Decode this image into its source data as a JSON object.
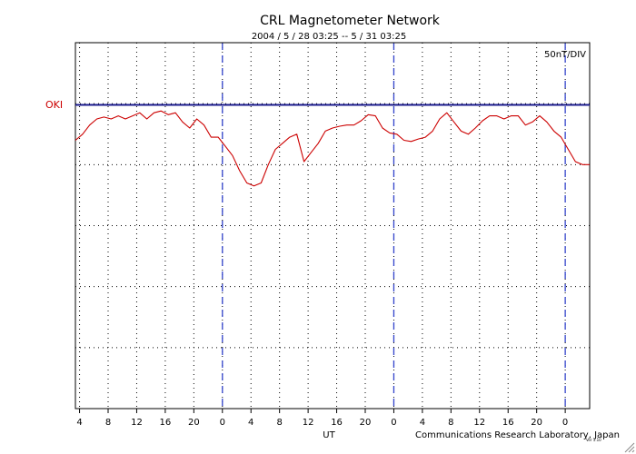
{
  "header": {
    "title": "CRL Magnetometer Network",
    "subtitle": "2004 / 5 / 28   03:25 --  5 / 31   03:25",
    "scale_label": "50nT/DIV"
  },
  "footer": {
    "x_axis_label": "UT",
    "credit": "Communications Research Laboratory, Japan",
    "tiny_note": "Ver 1.10"
  },
  "colors": {
    "trace": "#cc0000",
    "baseline": "#1a1a8c",
    "day_divider": "#3344cc",
    "station_label": "#cc0000"
  },
  "chart_data": {
    "type": "line",
    "title": "CRL Magnetometer Network",
    "subtitle": "2004 / 5 / 28   03:25 --  5 / 31   03:25",
    "xlabel": "UT",
    "ylabel": "",
    "scale": "50nT/DIV",
    "x_unit": "hours from 2004-05-28 03:25 UT",
    "xlim": [
      0,
      72
    ],
    "ylim_divisions": [
      0,
      6
    ],
    "grid": true,
    "x_ticks": [
      {
        "x": 0.58,
        "label": "4"
      },
      {
        "x": 4.58,
        "label": "8"
      },
      {
        "x": 8.58,
        "label": "12"
      },
      {
        "x": 12.58,
        "label": "16"
      },
      {
        "x": 16.58,
        "label": "20"
      },
      {
        "x": 20.58,
        "label": "0"
      },
      {
        "x": 24.58,
        "label": "4"
      },
      {
        "x": 28.58,
        "label": "8"
      },
      {
        "x": 32.58,
        "label": "12"
      },
      {
        "x": 36.58,
        "label": "16"
      },
      {
        "x": 40.58,
        "label": "20"
      },
      {
        "x": 44.58,
        "label": "0"
      },
      {
        "x": 48.58,
        "label": "4"
      },
      {
        "x": 52.58,
        "label": "8"
      },
      {
        "x": 56.58,
        "label": "12"
      },
      {
        "x": 60.58,
        "label": "16"
      },
      {
        "x": 64.58,
        "label": "20"
      },
      {
        "x": 68.58,
        "label": "0"
      }
    ],
    "day_boundaries": [
      20.58,
      44.58,
      68.58
    ],
    "series": [
      {
        "name": "OKI",
        "baseline_division": 1.0,
        "x": [
          0,
          1,
          2,
          3,
          4,
          5,
          6,
          7,
          8,
          9,
          10,
          11,
          12,
          13,
          14,
          15,
          16,
          17,
          18,
          19,
          20,
          21,
          22,
          23,
          24,
          25,
          26,
          27,
          28,
          29,
          30,
          31,
          32,
          33,
          34,
          35,
          36,
          37,
          38,
          39,
          40,
          41,
          42,
          43,
          44,
          45,
          46,
          47,
          48,
          49,
          50,
          51,
          52,
          53,
          54,
          55,
          56,
          57,
          58,
          59,
          60,
          61,
          62,
          63,
          64,
          65,
          66,
          67,
          68,
          69,
          70,
          71,
          72
        ],
        "y_div": [
          1.6,
          1.5,
          1.35,
          1.25,
          1.22,
          1.25,
          1.2,
          1.25,
          1.2,
          1.15,
          1.25,
          1.15,
          1.12,
          1.18,
          1.15,
          1.3,
          1.4,
          1.25,
          1.35,
          1.55,
          1.55,
          1.7,
          1.85,
          2.1,
          2.3,
          2.35,
          2.3,
          2.0,
          1.75,
          1.65,
          1.55,
          1.5,
          1.95,
          1.8,
          1.65,
          1.45,
          1.4,
          1.37,
          1.35,
          1.35,
          1.28,
          1.18,
          1.2,
          1.4,
          1.48,
          1.5,
          1.6,
          1.62,
          1.58,
          1.55,
          1.45,
          1.25,
          1.15,
          1.3,
          1.45,
          1.5,
          1.4,
          1.28,
          1.2,
          1.2,
          1.25,
          1.2,
          1.2,
          1.35,
          1.3,
          1.2,
          1.3,
          1.45,
          1.55,
          1.75,
          1.95,
          2.0,
          2.0
        ]
      }
    ]
  }
}
